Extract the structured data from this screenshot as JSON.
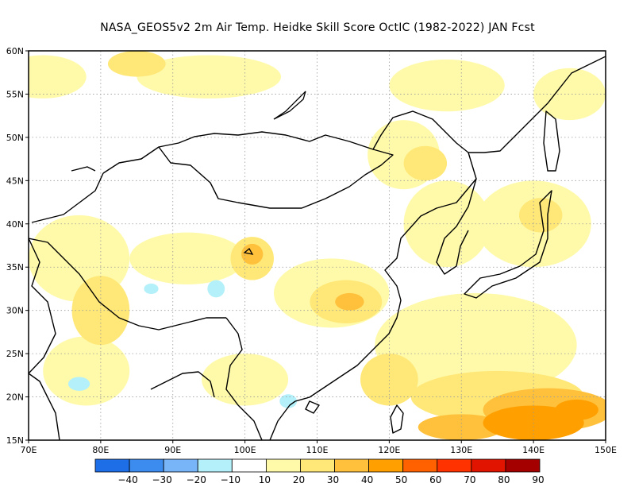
{
  "title": "NASA_GEOS5v2  2m Air Temp. Heidke Skill Score OctIC (1982-2022) JAN Fcst",
  "map": {
    "lon_range": [
      70,
      150
    ],
    "lat_range": [
      15,
      60
    ],
    "lon_ticks": [
      "70E",
      "80E",
      "90E",
      "100E",
      "110E",
      "120E",
      "130E",
      "140E",
      "150E"
    ],
    "lat_ticks": [
      "15N",
      "20N",
      "25N",
      "30N",
      "35N",
      "40N",
      "45N",
      "50N",
      "55N",
      "60N"
    ],
    "gridlines": "dotted",
    "coastline_color": "#000000"
  },
  "colorbar": {
    "labels": [
      "-40",
      "-30",
      "-20",
      "-10",
      "10",
      "20",
      "30",
      "40",
      "50",
      "60",
      "70",
      "80",
      "90"
    ],
    "colors": [
      "#1e6ee8",
      "#3c8cf0",
      "#78b4f8",
      "#b4f0fa",
      "#ffffff",
      "#fffaaa",
      "#ffe878",
      "#ffc03c",
      "#ffa000",
      "#ff6000",
      "#ff3200",
      "#e11400",
      "#a50000"
    ]
  },
  "skill_regions": [
    {
      "level": "20",
      "color": "#fffaaa",
      "lon": 72,
      "lat": 57,
      "rx": 6,
      "ry": 2.5
    },
    {
      "level": "20",
      "color": "#fffaaa",
      "lon": 95,
      "lat": 57,
      "rx": 10,
      "ry": 2.5
    },
    {
      "level": "20",
      "color": "#fffaaa",
      "lon": 128,
      "lat": 56,
      "rx": 8,
      "ry": 3
    },
    {
      "level": "20",
      "color": "#fffaaa",
      "lon": 145,
      "lat": 55,
      "rx": 5,
      "ry": 3
    },
    {
      "level": "20",
      "color": "#fffaaa",
      "lon": 77,
      "lat": 36,
      "rx": 7,
      "ry": 5
    },
    {
      "level": "20",
      "color": "#fffaaa",
      "lon": 92,
      "lat": 36,
      "rx": 8,
      "ry": 3
    },
    {
      "level": "20",
      "color": "#fffaaa",
      "lon": 112,
      "lat": 32,
      "rx": 8,
      "ry": 4
    },
    {
      "level": "20",
      "color": "#fffaaa",
      "lon": 128,
      "lat": 40,
      "rx": 6,
      "ry": 5
    },
    {
      "level": "20",
      "color": "#fffaaa",
      "lon": 140,
      "lat": 40,
      "rx": 8,
      "ry": 5
    },
    {
      "level": "20",
      "color": "#fffaaa",
      "lon": 132,
      "lat": 26,
      "rx": 14,
      "ry": 6
    },
    {
      "level": "20",
      "color": "#fffaaa",
      "lon": 78,
      "lat": 23,
      "rx": 6,
      "ry": 4
    },
    {
      "level": "20",
      "color": "#fffaaa",
      "lon": 100,
      "lat": 22,
      "rx": 6,
      "ry": 3
    },
    {
      "level": "20",
      "color": "#fffaaa",
      "lon": 122,
      "lat": 48,
      "rx": 5,
      "ry": 4
    },
    {
      "level": "30",
      "color": "#ffe878",
      "lon": 85,
      "lat": 58.5,
      "rx": 4,
      "ry": 1.5
    },
    {
      "level": "30",
      "color": "#ffe878",
      "lon": 101,
      "lat": 36,
      "rx": 3,
      "ry": 2.5
    },
    {
      "level": "30",
      "color": "#ffe878",
      "lon": 114,
      "lat": 31,
      "rx": 5,
      "ry": 2.5
    },
    {
      "level": "30",
      "color": "#ffe878",
      "lon": 80,
      "lat": 30,
      "rx": 4,
      "ry": 4
    },
    {
      "level": "30",
      "color": "#ffe878",
      "lon": 125,
      "lat": 47,
      "rx": 3,
      "ry": 2
    },
    {
      "level": "30",
      "color": "#ffe878",
      "lon": 141,
      "lat": 41,
      "rx": 3,
      "ry": 2
    },
    {
      "level": "30",
      "color": "#ffe878",
      "lon": 120,
      "lat": 22,
      "rx": 4,
      "ry": 3
    },
    {
      "level": "30",
      "color": "#ffe878",
      "lon": 135,
      "lat": 20,
      "rx": 12,
      "ry": 3
    },
    {
      "level": "40",
      "color": "#ffc03c",
      "lon": 101,
      "lat": 36.5,
      "rx": 1.5,
      "ry": 1.2
    },
    {
      "level": "40",
      "color": "#ffc03c",
      "lon": 114.5,
      "lat": 31,
      "rx": 2,
      "ry": 1
    },
    {
      "level": "40",
      "color": "#ffc03c",
      "lon": 142,
      "lat": 18.5,
      "rx": 9,
      "ry": 2.5
    },
    {
      "level": "40",
      "color": "#ffc03c",
      "lon": 130,
      "lat": 16.5,
      "rx": 6,
      "ry": 1.5
    },
    {
      "level": "50",
      "color": "#ffa000",
      "lon": 140,
      "lat": 17,
      "rx": 7,
      "ry": 2
    },
    {
      "level": "50",
      "color": "#ffa000",
      "lon": 146,
      "lat": 18.5,
      "rx": 3,
      "ry": 1.2
    },
    {
      "level": "-10",
      "color": "#b4f0fa",
      "lon": 96,
      "lat": 32.5,
      "rx": 1.2,
      "ry": 1
    },
    {
      "level": "-10",
      "color": "#b4f0fa",
      "lon": 106,
      "lat": 19.5,
      "rx": 1.2,
      "ry": 0.8
    },
    {
      "level": "-10",
      "color": "#b4f0fa",
      "lon": 77,
      "lat": 21.5,
      "rx": 1.5,
      "ry": 0.8
    },
    {
      "level": "-10",
      "color": "#b4f0fa",
      "lon": 87,
      "lat": 32.5,
      "rx": 1,
      "ry": 0.6
    }
  ]
}
